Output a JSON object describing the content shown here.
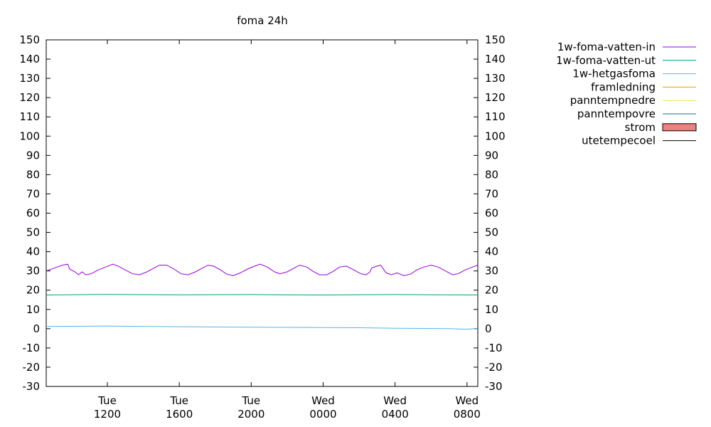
{
  "chart_data": {
    "type": "line",
    "title": "foma 24h",
    "xlabel": "",
    "ylabel": "",
    "ylim": [
      -30,
      150
    ],
    "yticks": [
      -30,
      -20,
      -10,
      0,
      10,
      20,
      30,
      40,
      50,
      60,
      70,
      80,
      90,
      100,
      110,
      120,
      130,
      140,
      150
    ],
    "x_range_hours": [
      8.6,
      32.6
    ],
    "x_ticks": [
      {
        "hour": 12,
        "day": "Tue",
        "time": "1200"
      },
      {
        "hour": 16,
        "day": "Tue",
        "time": "1600"
      },
      {
        "hour": 20,
        "day": "Tue",
        "time": "2000"
      },
      {
        "hour": 24,
        "day": "Wed",
        "time": "0000"
      },
      {
        "hour": 28,
        "day": "Wed",
        "time": "0400"
      },
      {
        "hour": 32,
        "day": "Wed",
        "time": "0800"
      }
    ],
    "grid": false,
    "legend_position": "right",
    "series": [
      {
        "name": "1w-foma-vatten-in",
        "color": "#9400d3",
        "style": "line",
        "x": [
          8.6,
          9.2,
          9.5,
          9.8,
          9.9,
          10.2,
          10.4,
          10.6,
          10.8,
          11.1,
          11.5,
          11.9,
          12.3,
          12.6,
          13.0,
          13.4,
          13.8,
          14.2,
          14.6,
          14.9,
          15.3,
          15.7,
          16.1,
          16.5,
          16.9,
          17.3,
          17.6,
          17.9,
          18.3,
          18.6,
          19.0,
          19.4,
          19.8,
          20.2,
          20.5,
          20.9,
          21.3,
          21.6,
          22.0,
          22.4,
          22.7,
          23.1,
          23.4,
          23.8,
          24.2,
          24.6,
          24.9,
          25.3,
          25.7,
          26.1,
          26.4,
          26.6,
          26.7,
          27.0,
          27.2,
          27.5,
          27.8,
          28.1,
          28.5,
          28.9,
          29.2,
          29.6,
          30.0,
          30.4,
          30.8,
          31.2,
          31.5,
          31.9,
          32.3,
          32.6
        ],
        "y": [
          30,
          32,
          33,
          33.5,
          31,
          29.5,
          28,
          29.5,
          28,
          28.5,
          30.5,
          32,
          33.5,
          32.5,
          30.5,
          28.5,
          28,
          29.5,
          31.5,
          33,
          33,
          31,
          28.5,
          28,
          29.5,
          31.5,
          33,
          32.5,
          30.5,
          28.5,
          27.5,
          29,
          31,
          32.5,
          33.5,
          32,
          29.5,
          28.5,
          29.5,
          31.5,
          33,
          32,
          30,
          28,
          28,
          30,
          32,
          32.5,
          30.5,
          28.5,
          28,
          29.5,
          31.5,
          32.5,
          33,
          29,
          28,
          29,
          27.5,
          28.5,
          30.5,
          32,
          33,
          32,
          30,
          28,
          28.5,
          30.5,
          32,
          33
        ]
      },
      {
        "name": "1w-foma-vatten-ut",
        "color": "#009e73",
        "style": "line",
        "x": [
          8.6,
          12,
          16,
          20,
          24,
          28,
          32.6
        ],
        "y": [
          17.5,
          17.8,
          17.6,
          17.7,
          17.5,
          17.7,
          17.5
        ]
      },
      {
        "name": "1w-hetgasfoma",
        "color": "#56b4e9",
        "style": "line",
        "x": [
          8.6,
          12,
          16,
          20,
          24,
          26,
          28,
          31,
          32,
          32.6
        ],
        "y": [
          1.2,
          1.3,
          1.0,
          0.8,
          0.6,
          0.5,
          0.2,
          0.0,
          -0.3,
          0.2
        ]
      },
      {
        "name": "framledning",
        "color": "#e69f00",
        "style": "line",
        "x": [],
        "y": []
      },
      {
        "name": "panntempnedre",
        "color": "#f0e442",
        "style": "line",
        "x": [],
        "y": []
      },
      {
        "name": "panntempovre",
        "color": "#0072b2",
        "style": "line",
        "x": [],
        "y": []
      },
      {
        "name": "strom",
        "color": "#f08080",
        "style": "box",
        "x": [],
        "y": []
      },
      {
        "name": "utetempecoel",
        "color": "#000000",
        "style": "line",
        "x": [],
        "y": []
      }
    ]
  }
}
